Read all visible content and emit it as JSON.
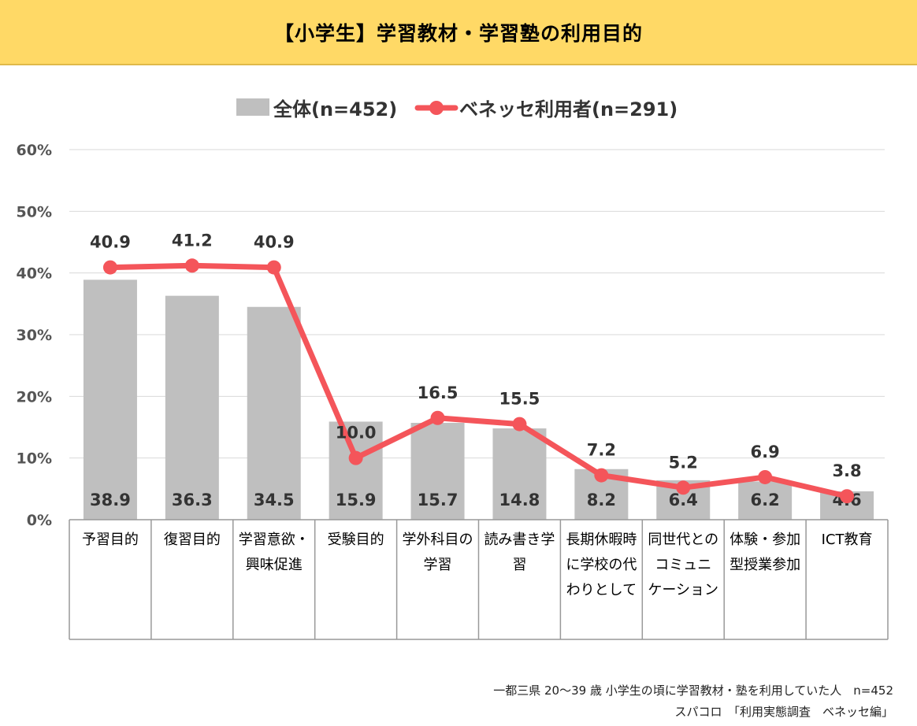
{
  "header": {
    "title": "【小学生】学習教材・学習塾の利用目的"
  },
  "footer": {
    "line1": "一都三県 20～39 歳 小学生の頃に学習教材・塾を利用していた人　n=452",
    "line2": "スパコロ　「利用実態調査　ベネッセ編」"
  },
  "colors": {
    "bar": "#bfbfbf",
    "line": "#f4555a",
    "header_bg": "#ffd966",
    "grid": "#d9d9d9"
  },
  "chart_data": {
    "type": "bar+line",
    "y_ticks": [
      "0%",
      "10%",
      "20%",
      "30%",
      "40%",
      "50%",
      "60%"
    ],
    "ylim": [
      0,
      60
    ],
    "grid": true,
    "legend_position": "top",
    "categories": [
      [
        "予習目的"
      ],
      [
        "復習目的"
      ],
      [
        "学習意欲・",
        "興味促進"
      ],
      [
        "受験目的"
      ],
      [
        "学外科目の",
        "学習"
      ],
      [
        "読み書き学",
        "習"
      ],
      [
        "長期休暇時",
        "に学校の代",
        "わりとして"
      ],
      [
        "同世代との",
        "コミュニ",
        "ケーション"
      ],
      [
        "体験・参加",
        "型授業参加"
      ],
      [
        "ICT教育"
      ]
    ],
    "series": [
      {
        "name": "全体(n=452)",
        "type": "bar",
        "values": [
          38.9,
          36.3,
          34.5,
          15.9,
          15.7,
          14.8,
          8.2,
          6.4,
          6.2,
          4.6
        ],
        "value_labels": [
          "38.9",
          "36.3",
          "34.5",
          "15.9",
          "15.7",
          "14.8",
          "8.2",
          "6.4",
          "6.2",
          "4.6"
        ]
      },
      {
        "name": "ベネッセ利用者(n=291)",
        "type": "line",
        "values": [
          40.9,
          41.2,
          40.9,
          10.0,
          16.5,
          15.5,
          7.2,
          5.2,
          6.9,
          3.8
        ],
        "value_labels": [
          "40.9",
          "41.2",
          "40.9",
          "10.0",
          "16.5",
          "15.5",
          "7.2",
          "5.2",
          "6.9",
          "3.8"
        ]
      }
    ]
  }
}
